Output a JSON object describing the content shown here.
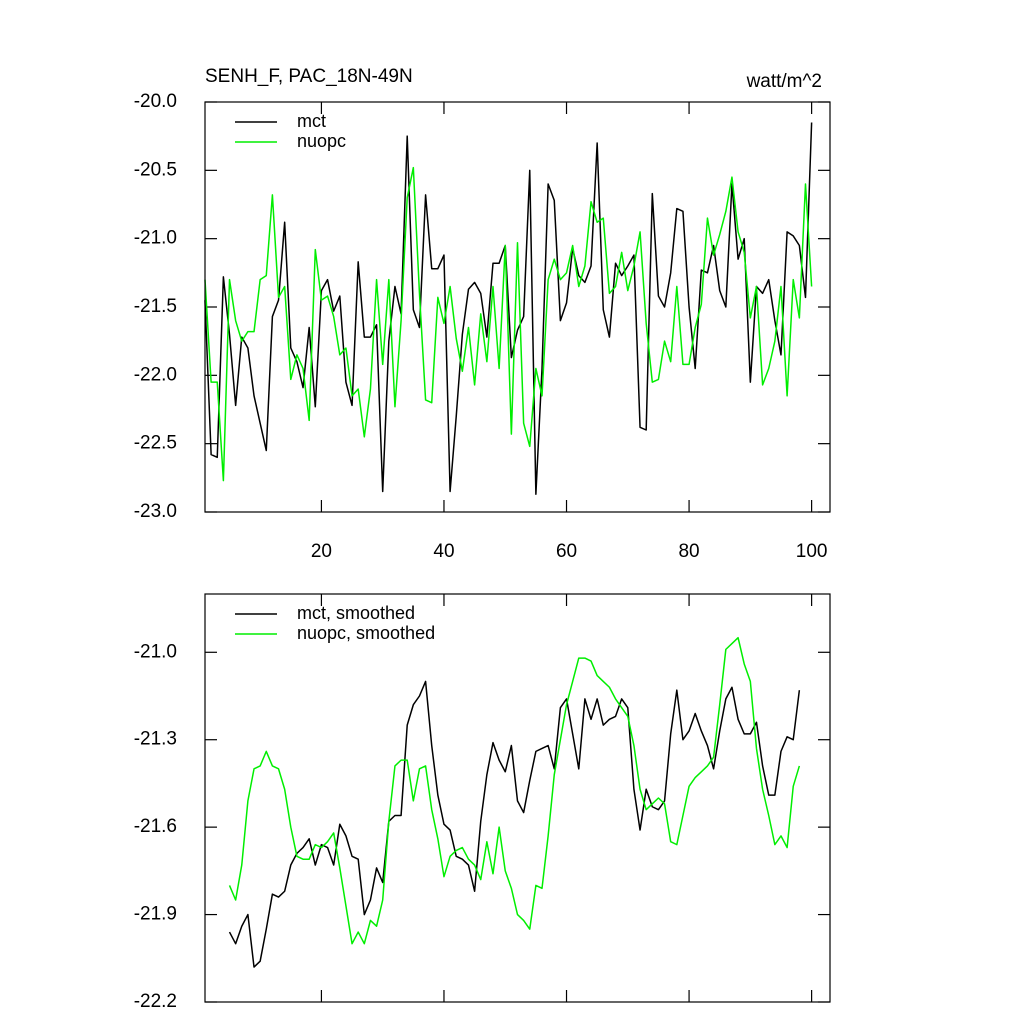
{
  "chart_data": [
    {
      "type": "line",
      "title": "SENH_F, PAC_18N-49N",
      "units": "watt/m^2",
      "legend": "upper left",
      "x": [
        1,
        2,
        3,
        4,
        5,
        6,
        7,
        8,
        9,
        10,
        11,
        12,
        13,
        14,
        15,
        16,
        17,
        18,
        19,
        20,
        21,
        22,
        23,
        24,
        25,
        26,
        27,
        28,
        29,
        30,
        31,
        32,
        33,
        34,
        35,
        36,
        37,
        38,
        39,
        40,
        41,
        42,
        43,
        44,
        45,
        46,
        47,
        48,
        49,
        50,
        51,
        52,
        53,
        54,
        55,
        56,
        57,
        58,
        59,
        60,
        61,
        62,
        63,
        64,
        65,
        66,
        67,
        68,
        69,
        70,
        71,
        72,
        73,
        74,
        75,
        76,
        77,
        78,
        79,
        80,
        81,
        82,
        83,
        84,
        85,
        86,
        87,
        88,
        89,
        90,
        91,
        92,
        93,
        94,
        95,
        96,
        97,
        98,
        99,
        100
      ],
      "xlim": [
        1,
        103
      ],
      "xticks": [
        20,
        40,
        60,
        80,
        100
      ],
      "xtick_labels": true,
      "ylim": [
        -23,
        -20
      ],
      "yticks": [
        {
          "value": -23,
          "label": "-23.0"
        },
        -22.5,
        {
          "value": -22,
          "label": "-22.0"
        },
        -21.5,
        {
          "value": -21,
          "label": "-21.0"
        },
        -20.5,
        {
          "value": -20,
          "label": "-20.0"
        }
      ],
      "series": [
        {
          "name": "mct",
          "color": "#000000",
          "values": [
            -21.45,
            -22.58,
            -22.6,
            -21.28,
            -21.7,
            -22.22,
            -21.72,
            -21.8,
            -22.15,
            -22.35,
            -22.55,
            -21.57,
            -21.45,
            -20.88,
            -21.8,
            -21.9,
            -22.09,
            -21.65,
            -22.23,
            -21.38,
            -21.3,
            -21.53,
            -21.42,
            -22.05,
            -22.22,
            -21.17,
            -21.72,
            -21.72,
            -21.63,
            -22.85,
            -21.75,
            -21.35,
            -21.55,
            -20.25,
            -21.52,
            -21.65,
            -20.68,
            -21.22,
            -21.22,
            -21.12,
            -22.85,
            -22.3,
            -21.7,
            -21.37,
            -21.32,
            -21.4,
            -21.72,
            -21.18,
            -21.18,
            -21.05,
            -21.87,
            -21.67,
            -21.57,
            -20.5,
            -22.87,
            -21.95,
            -20.6,
            -20.72,
            -21.6,
            -21.47,
            -21.07,
            -21.27,
            -21.32,
            -21.2,
            -20.3,
            -21.52,
            -21.72,
            -21.18,
            -21.27,
            -21.2,
            -21.12,
            -22.38,
            -22.4,
            -20.67,
            -21.42,
            -21.5,
            -21.25,
            -20.78,
            -20.8,
            -21.5,
            -21.95,
            -21.23,
            -21.25,
            -21.05,
            -21.38,
            -21.5,
            -20.6,
            -21.15,
            -21.0,
            -22.05,
            -21.35,
            -21.4,
            -21.3,
            -21.6,
            -21.85,
            -20.95,
            -20.98,
            -21.05,
            -21.43,
            -20.15
          ]
        },
        {
          "name": "nuopc",
          "color": "#00ee00",
          "values": [
            -21.3,
            -22.05,
            -22.05,
            -22.77,
            -21.3,
            -21.6,
            -21.75,
            -21.68,
            -21.68,
            -21.3,
            -21.27,
            -20.68,
            -21.43,
            -21.35,
            -22.03,
            -21.85,
            -21.95,
            -22.33,
            -21.08,
            -21.45,
            -21.42,
            -21.57,
            -21.85,
            -21.8,
            -22.15,
            -22.1,
            -22.45,
            -22.1,
            -21.3,
            -21.92,
            -21.3,
            -22.23,
            -21.6,
            -20.7,
            -20.48,
            -21.4,
            -22.18,
            -22.2,
            -21.43,
            -21.62,
            -21.35,
            -21.73,
            -21.97,
            -21.65,
            -22.07,
            -21.55,
            -21.9,
            -21.35,
            -21.95,
            -21.05,
            -22.43,
            -21.03,
            -22.35,
            -22.52,
            -21.95,
            -22.15,
            -21.3,
            -21.15,
            -21.3,
            -21.25,
            -21.05,
            -21.35,
            -21.2,
            -20.73,
            -20.88,
            -20.85,
            -21.4,
            -21.35,
            -21.1,
            -21.38,
            -21.2,
            -20.95,
            -21.62,
            -22.05,
            -22.03,
            -21.75,
            -21.9,
            -21.35,
            -21.92,
            -21.92,
            -21.65,
            -21.48,
            -20.85,
            -21.12,
            -20.97,
            -20.8,
            -20.55,
            -20.95,
            -21.1,
            -21.58,
            -21.35,
            -22.07,
            -21.95,
            -21.75,
            -21.35,
            -22.15,
            -21.3,
            -21.58,
            -20.6,
            -21.35
          ]
        }
      ]
    },
    {
      "type": "line",
      "legend": "upper left",
      "x": [
        5,
        6,
        7,
        8,
        9,
        10,
        11,
        12,
        13,
        14,
        15,
        16,
        17,
        18,
        19,
        20,
        21,
        22,
        23,
        24,
        25,
        26,
        27,
        28,
        29,
        30,
        31,
        32,
        33,
        34,
        35,
        36,
        37,
        38,
        39,
        40,
        41,
        42,
        43,
        44,
        45,
        46,
        47,
        48,
        49,
        50,
        51,
        52,
        53,
        54,
        55,
        56,
        57,
        58,
        59,
        60,
        61,
        62,
        63,
        64,
        65,
        66,
        67,
        68,
        69,
        70,
        71,
        72,
        73,
        74,
        75,
        76,
        77,
        78,
        79,
        80,
        81,
        82,
        83,
        84,
        85,
        86,
        87,
        88,
        89,
        90,
        91,
        92,
        93,
        94,
        95,
        96,
        97,
        98
      ],
      "xlim": [
        1,
        103
      ],
      "xticks": [
        20,
        40,
        60,
        80,
        100
      ],
      "xtick_labels": false,
      "ylim": [
        -22.2,
        -20.8
      ],
      "yticks": [
        -22.2,
        -21.9,
        -21.6,
        -21.3,
        {
          "value": -21,
          "label": "-21.0"
        }
      ],
      "series": [
        {
          "name": "mct, smoothed",
          "color": "#000000",
          "values": [
            -21.96,
            -22.0,
            -21.94,
            -21.9,
            -22.08,
            -22.06,
            -21.95,
            -21.83,
            -21.84,
            -21.82,
            -21.73,
            -21.69,
            -21.67,
            -21.64,
            -21.73,
            -21.66,
            -21.67,
            -21.73,
            -21.59,
            -21.63,
            -21.7,
            -21.71,
            -21.9,
            -21.85,
            -21.74,
            -21.79,
            -21.58,
            -21.56,
            -21.56,
            -21.25,
            -21.18,
            -21.15,
            -21.1,
            -21.32,
            -21.49,
            -21.59,
            -21.61,
            -21.7,
            -21.71,
            -21.73,
            -21.82,
            -21.58,
            -21.42,
            -21.31,
            -21.37,
            -21.41,
            -21.32,
            -21.51,
            -21.55,
            -21.44,
            -21.34,
            -21.33,
            -21.32,
            -21.4,
            -21.19,
            -21.16,
            -21.28,
            -21.4,
            -21.16,
            -21.23,
            -21.16,
            -21.25,
            -21.23,
            -21.22,
            -21.16,
            -21.19,
            -21.47,
            -21.61,
            -21.47,
            -21.53,
            -21.54,
            -21.51,
            -21.28,
            -21.13,
            -21.3,
            -21.27,
            -21.21,
            -21.27,
            -21.32,
            -21.4,
            -21.27,
            -21.16,
            -21.12,
            -21.23,
            -21.28,
            -21.28,
            -21.24,
            -21.39,
            -21.49,
            -21.49,
            -21.34,
            -21.29,
            -21.3,
            -21.13
          ]
        },
        {
          "name": "nuopc, smoothed",
          "color": "#00ee00",
          "values": [
            -21.8,
            -21.85,
            -21.73,
            -21.51,
            -21.4,
            -21.39,
            -21.34,
            -21.39,
            -21.4,
            -21.47,
            -21.6,
            -21.7,
            -21.71,
            -21.71,
            -21.66,
            -21.67,
            -21.65,
            -21.62,
            -21.74,
            -21.87,
            -22.0,
            -21.96,
            -22.0,
            -21.92,
            -21.94,
            -21.85,
            -21.58,
            -21.39,
            -21.37,
            -21.37,
            -21.51,
            -21.4,
            -21.39,
            -21.54,
            -21.64,
            -21.77,
            -21.7,
            -21.68,
            -21.67,
            -21.71,
            -21.73,
            -21.78,
            -21.65,
            -21.76,
            -21.6,
            -21.75,
            -21.81,
            -21.9,
            -21.92,
            -21.95,
            -21.8,
            -21.81,
            -21.63,
            -21.42,
            -21.3,
            -21.18,
            -21.1,
            -21.02,
            -21.02,
            -21.03,
            -21.08,
            -21.1,
            -21.12,
            -21.16,
            -21.19,
            -21.22,
            -21.32,
            -21.47,
            -21.54,
            -21.52,
            -21.5,
            -21.52,
            -21.65,
            -21.66,
            -21.56,
            -21.46,
            -21.43,
            -21.41,
            -21.39,
            -21.36,
            -21.18,
            -20.99,
            -20.97,
            -20.95,
            -21.04,
            -21.1,
            -21.33,
            -21.47,
            -21.56,
            -21.66,
            -21.63,
            -21.67,
            -21.46,
            -21.39
          ]
        }
      ]
    }
  ]
}
